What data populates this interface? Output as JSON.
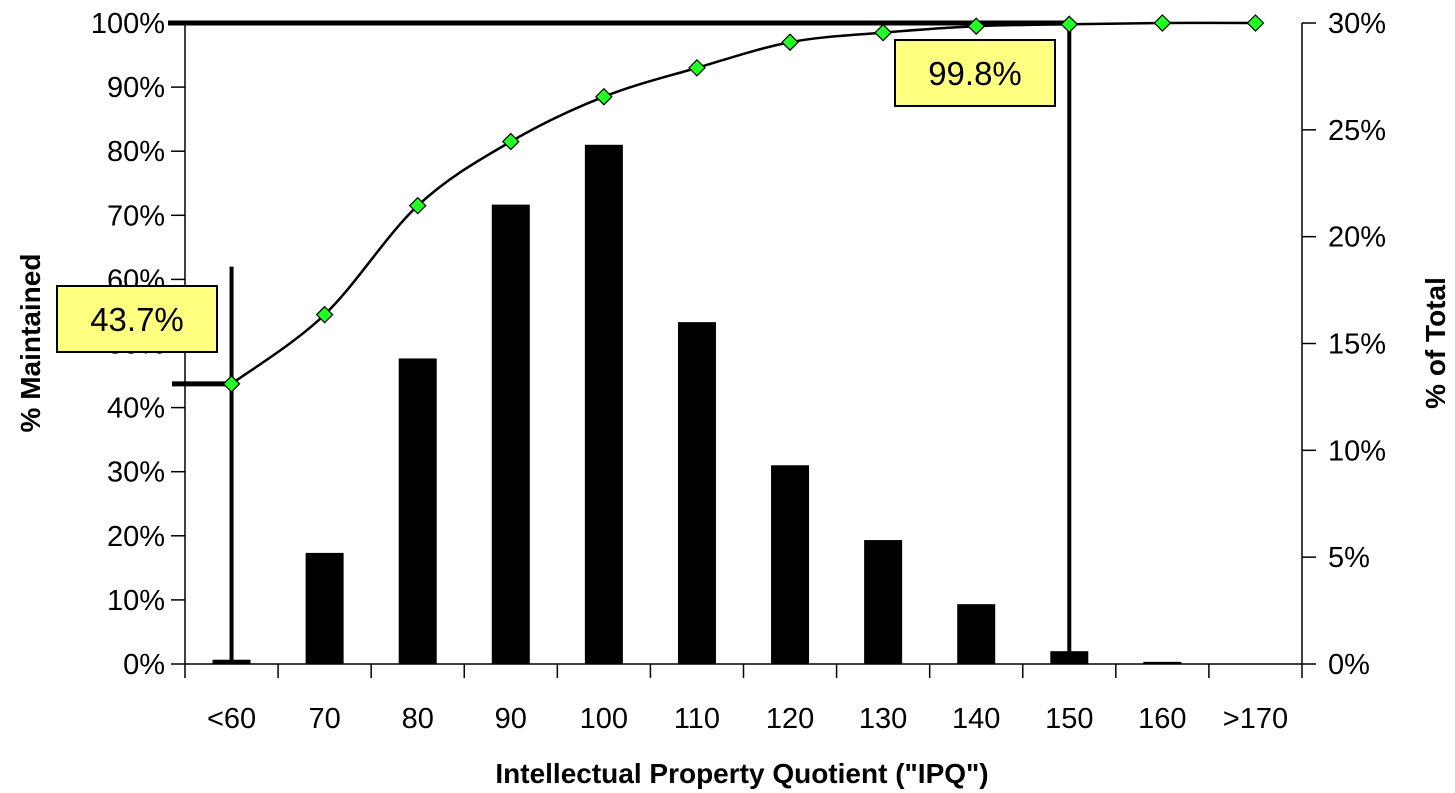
{
  "chart_data": {
    "type": "bar",
    "categories": [
      "<60",
      "70",
      "80",
      "90",
      "100",
      "110",
      "120",
      "130",
      "140",
      "150",
      "160",
      ">170"
    ],
    "series": [
      {
        "type": "bar",
        "axis": "right",
        "values": [
          0.2,
          5.2,
          14.3,
          21.5,
          24.3,
          16.0,
          9.3,
          5.8,
          2.8,
          0.6,
          0.1,
          0.0
        ]
      },
      {
        "type": "line",
        "axis": "left",
        "marker": "diamond",
        "values": [
          43.7,
          54.5,
          71.5,
          81.5,
          88.5,
          93.0,
          97.0,
          98.5,
          99.5,
          99.8,
          100.0,
          100.0
        ]
      }
    ],
    "xlabel": "Intellectual Property Quotient (\"IPQ\")",
    "ylabel_left": "% Maintained",
    "ylabel_right": "% of Total",
    "ylim_left": [
      0,
      100
    ],
    "ylim_right": [
      0,
      30
    ],
    "yticks_left": [
      "0%",
      "10%",
      "20%",
      "30%",
      "40%",
      "50%",
      "60%",
      "70%",
      "80%",
      "90%",
      "100%"
    ],
    "yticks_right": [
      "0%",
      "5%",
      "10%",
      "15%",
      "20%",
      "25%",
      "30%"
    ],
    "annotations": [
      {
        "text": "43.7%",
        "category": "<60",
        "value": 43.7
      },
      {
        "text": "99.8%",
        "category": "150",
        "value": 99.8
      }
    ],
    "grid": false,
    "legend": "none"
  },
  "colors": {
    "bar": "#000000",
    "line": "#000000",
    "marker": "#22ff22",
    "callout_fill": "#ffff80",
    "reference_line": "#000000"
  }
}
